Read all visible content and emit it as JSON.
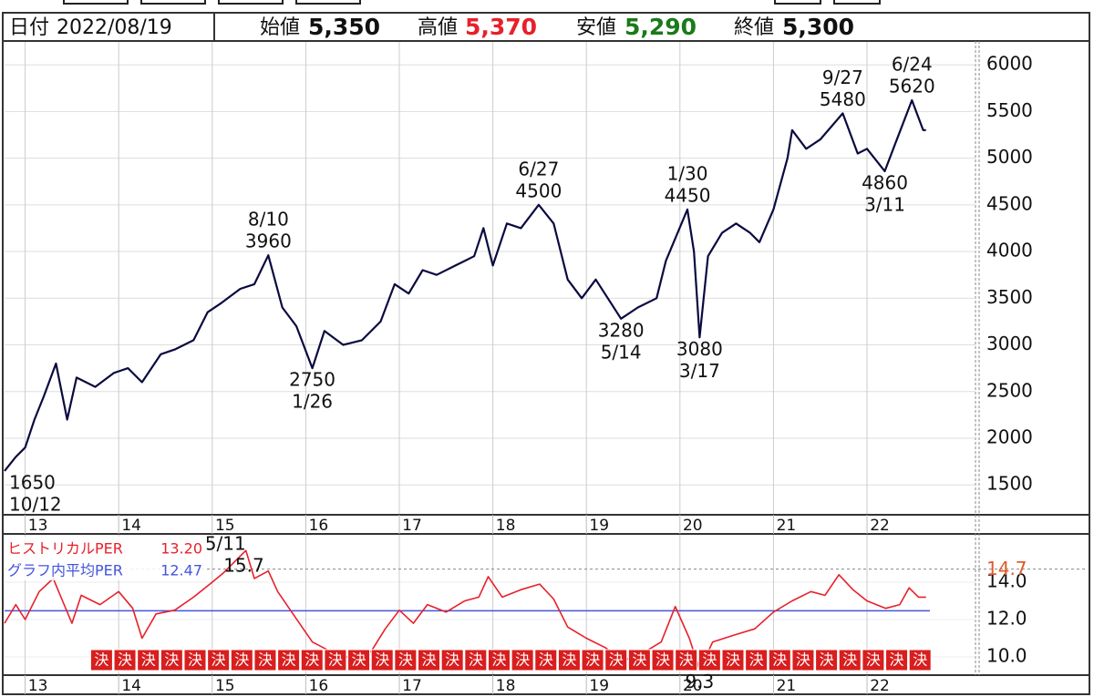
{
  "header": {
    "date_label": "日付",
    "date": "2022/08/19",
    "open_label": "始値",
    "open": "5,350",
    "high_label": "高値",
    "high": "5,370",
    "low_label": "安値",
    "low": "5,290",
    "close_label": "終値",
    "close": "5,300"
  },
  "chart_data": [
    {
      "type": "line",
      "grid": true,
      "x": [
        2012.78,
        2012.9,
        2013.0,
        2013.1,
        2013.2,
        2013.33,
        2013.45,
        2013.55,
        2013.75,
        2013.95,
        2014.1,
        2014.25,
        2014.45,
        2014.6,
        2014.8,
        2014.95,
        2015.1,
        2015.3,
        2015.45,
        2015.6,
        2015.75,
        2015.9,
        2016.07,
        2016.2,
        2016.4,
        2016.6,
        2016.8,
        2016.95,
        2017.1,
        2017.25,
        2017.4,
        2017.6,
        2017.8,
        2017.9,
        2018.0,
        2018.15,
        2018.3,
        2018.49,
        2018.65,
        2018.8,
        2018.95,
        2019.1,
        2019.37,
        2019.55,
        2019.75,
        2019.85,
        2020.08,
        2020.15,
        2020.21,
        2020.3,
        2020.45,
        2020.6,
        2020.75,
        2020.85,
        2021.0,
        2021.15,
        2021.2,
        2021.35,
        2021.5,
        2021.74,
        2021.9,
        2022.0,
        2022.19,
        2022.3,
        2022.48,
        2022.6,
        2022.63
      ],
      "series": [
        {
          "color": "#0a0a40",
          "values": [
            1650,
            1800,
            1900,
            2200,
            2450,
            2800,
            2200,
            2650,
            2550,
            2700,
            2750,
            2600,
            2900,
            2950,
            3050,
            3350,
            3450,
            3600,
            3650,
            3960,
            3400,
            3200,
            2750,
            3150,
            3000,
            3050,
            3250,
            3650,
            3550,
            3800,
            3750,
            3850,
            3950,
            4250,
            3850,
            4300,
            4250,
            4500,
            4300,
            3700,
            3500,
            3700,
            3280,
            3400,
            3500,
            3900,
            4450,
            4000,
            3080,
            3950,
            4200,
            4300,
            4200,
            4100,
            4450,
            5000,
            5300,
            5100,
            5200,
            5480,
            5050,
            5100,
            4860,
            5150,
            5620,
            5300,
            5300
          ]
        }
      ],
      "xlim": [
        2012.78,
        2023.14
      ],
      "ylim": [
        1190,
        6245
      ],
      "yticks": [
        1500,
        2000,
        2500,
        3000,
        3500,
        4000,
        4500,
        5000,
        5500,
        6000
      ],
      "xticks": [
        {
          "value": 2013,
          "label": "13"
        },
        {
          "value": 2014,
          "label": "14"
        },
        {
          "value": 2015,
          "label": "15"
        },
        {
          "value": 2016,
          "label": "16"
        },
        {
          "value": 2017,
          "label": "17"
        },
        {
          "value": 2018,
          "label": "18"
        },
        {
          "value": 2019,
          "label": "19"
        },
        {
          "value": 2020,
          "label": "20"
        },
        {
          "value": 2021,
          "label": "21"
        },
        {
          "value": 2022,
          "label": "22"
        }
      ],
      "annotations": [
        {
          "date": "10/12",
          "value": 1650,
          "x": 2012.78,
          "position": "below"
        },
        {
          "date": "8/10",
          "value": 3960,
          "x": 2015.6,
          "position": "above"
        },
        {
          "date": "1/26",
          "value": 2750,
          "x": 2016.07,
          "position": "below"
        },
        {
          "date": "6/27",
          "value": 4500,
          "x": 2018.49,
          "position": "above"
        },
        {
          "date": "5/14",
          "value": 3280,
          "x": 2019.37,
          "position": "below"
        },
        {
          "date": "1/30",
          "value": 4450,
          "x": 2020.08,
          "position": "above"
        },
        {
          "date": "3/17",
          "value": 3080,
          "x": 2020.21,
          "position": "below"
        },
        {
          "date": "9/27",
          "value": 5480,
          "x": 2021.74,
          "position": "above"
        },
        {
          "date": "3/11",
          "value": 4860,
          "x": 2022.19,
          "position": "below"
        },
        {
          "date": "6/24",
          "value": 5620,
          "x": 2022.48,
          "position": "above"
        }
      ]
    },
    {
      "type": "line",
      "grid": true,
      "x": [
        2012.78,
        2012.9,
        2013.0,
        2013.15,
        2013.3,
        2013.4,
        2013.5,
        2013.6,
        2013.8,
        2014.0,
        2014.15,
        2014.25,
        2014.4,
        2014.6,
        2014.8,
        2015.0,
        2015.12,
        2015.36,
        2015.45,
        2015.6,
        2015.7,
        2015.85,
        2016.07,
        2016.3,
        2016.5,
        2016.7,
        2016.85,
        2017.0,
        2017.15,
        2017.3,
        2017.5,
        2017.7,
        2017.85,
        2017.95,
        2018.1,
        2018.3,
        2018.5,
        2018.65,
        2018.8,
        2019.0,
        2019.2,
        2019.4,
        2019.6,
        2019.8,
        2019.95,
        2020.1,
        2020.21,
        2020.35,
        2020.6,
        2020.8,
        2021.0,
        2021.2,
        2021.4,
        2021.55,
        2021.7,
        2021.85,
        2022.0,
        2022.2,
        2022.35,
        2022.45,
        2022.55,
        2022.63
      ],
      "series": [
        {
          "name": "ヒストリカルPER",
          "color": "#e8202a",
          "last_label": "13.20",
          "values": [
            11.8,
            12.8,
            12.0,
            13.5,
            14.2,
            13.0,
            11.8,
            13.3,
            12.8,
            13.5,
            12.6,
            11.0,
            12.3,
            12.5,
            13.2,
            14.0,
            14.5,
            15.7,
            14.2,
            14.6,
            13.5,
            12.4,
            10.8,
            10.2,
            9.9,
            10.3,
            11.5,
            12.5,
            11.8,
            12.8,
            12.4,
            13.0,
            13.2,
            14.3,
            13.2,
            13.6,
            13.9,
            13.1,
            11.6,
            11.0,
            10.5,
            9.8,
            10.2,
            10.8,
            12.7,
            11.0,
            9.3,
            10.8,
            11.2,
            11.5,
            12.4,
            13.0,
            13.5,
            13.3,
            14.4,
            13.6,
            13.0,
            12.6,
            12.8,
            13.7,
            13.2,
            13.2
          ]
        }
      ],
      "average": {
        "name": "グラフ内平均PER",
        "value": 12.47,
        "label": "12.47",
        "color": "#4455dd"
      },
      "ref_line": {
        "value": 14.7,
        "label": "14.7",
        "color": "#e05a2a"
      },
      "xlim": [
        2012.78,
        2023.14
      ],
      "ylim": [
        9.07,
        16.54
      ],
      "yticks": [
        {
          "value": 10,
          "label": "10.0"
        },
        {
          "value": 12,
          "label": "12.0"
        },
        {
          "value": 14,
          "label": "14.0"
        }
      ],
      "xticks": [
        {
          "value": 2013,
          "label": "13"
        },
        {
          "value": 2014,
          "label": "14"
        },
        {
          "value": 2015,
          "label": "15"
        },
        {
          "value": 2016,
          "label": "16"
        },
        {
          "value": 2017,
          "label": "17"
        },
        {
          "value": 2018,
          "label": "18"
        },
        {
          "value": 2019,
          "label": "19"
        },
        {
          "value": 2020,
          "label": "20"
        },
        {
          "value": 2021,
          "label": "21"
        },
        {
          "value": 2022,
          "label": "22"
        }
      ],
      "annotations": [
        {
          "date": "5/11",
          "value": 15.7,
          "x": 2015.36,
          "position": "left"
        },
        {
          "value": 9.3,
          "x": 2020.21,
          "position": "below"
        }
      ],
      "earnings": {
        "label": "決",
        "color": "#d81e1e",
        "x": [
          2013.7,
          2013.95,
          2014.2,
          2014.45,
          2014.7,
          2014.95,
          2015.2,
          2015.45,
          2015.7,
          2015.95,
          2016.2,
          2016.45,
          2016.7,
          2016.95,
          2017.2,
          2017.45,
          2017.7,
          2017.95,
          2018.2,
          2018.45,
          2018.7,
          2018.95,
          2019.2,
          2019.45,
          2019.7,
          2019.95,
          2020.2,
          2020.45,
          2020.7,
          2020.95,
          2021.2,
          2021.45,
          2021.7,
          2021.95,
          2022.2,
          2022.45
        ]
      }
    }
  ]
}
